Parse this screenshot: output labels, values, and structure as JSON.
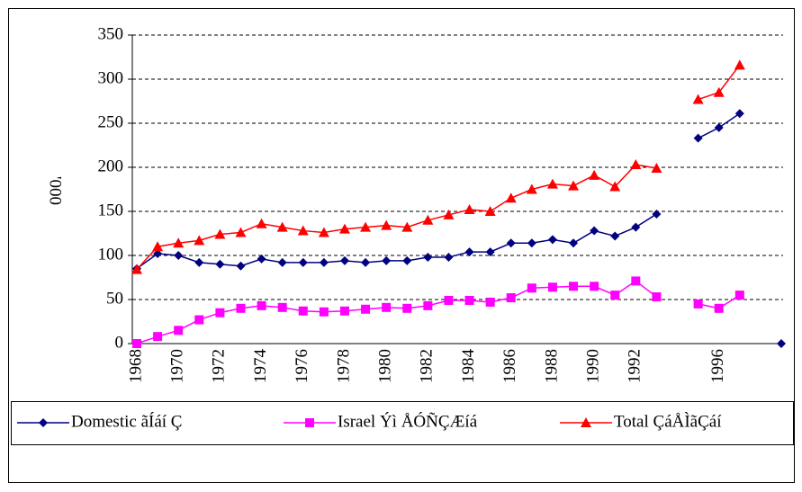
{
  "chart_data": {
    "type": "line",
    "y_label": "'000",
    "categories": [
      "1968",
      null,
      "1970",
      null,
      "1972",
      null,
      "1974",
      null,
      "1976",
      null,
      "1978",
      null,
      "1980",
      null,
      "1982",
      null,
      "1984",
      null,
      "1986",
      null,
      "1988",
      null,
      "1990",
      null,
      "1992",
      null,
      null,
      null,
      "1996",
      null,
      null,
      null
    ],
    "series": [
      {
        "name": "Domestic ãÍáí Ç",
        "color": "#000080",
        "marker": "diamond",
        "values": [
          85,
          102,
          100,
          92,
          90,
          88,
          96,
          92,
          92,
          92,
          94,
          92,
          94,
          94,
          98,
          98,
          104,
          104,
          114,
          114,
          118,
          114,
          128,
          122,
          132,
          147,
          null,
          233,
          245,
          261,
          null,
          0
        ]
      },
      {
        "name": "Israel Ýì ÅÓÑÇÆíá",
        "color": "#ff00ff",
        "marker": "square",
        "values": [
          0,
          8,
          15,
          27,
          35,
          40,
          43,
          41,
          37,
          36,
          37,
          39,
          41,
          40,
          43,
          49,
          49,
          47,
          52,
          63,
          64,
          65,
          65,
          55,
          71,
          53,
          null,
          45,
          40,
          55,
          null,
          null
        ]
      },
      {
        "name": "Total ÇáÅÌãÇáí",
        "color": "#ff0000",
        "marker": "triangle",
        "values": [
          84,
          110,
          114,
          117,
          124,
          126,
          136,
          132,
          128,
          126,
          130,
          132,
          134,
          132,
          140,
          146,
          152,
          150,
          165,
          175,
          181,
          179,
          191,
          178,
          203,
          199,
          null,
          277,
          285,
          316,
          null,
          null
        ]
      }
    ],
    "ylim": [
      0,
      350
    ],
    "yticks": [
      0,
      50,
      100,
      150,
      200,
      250,
      300,
      350
    ],
    "grid": true,
    "legend": "bottom"
  }
}
